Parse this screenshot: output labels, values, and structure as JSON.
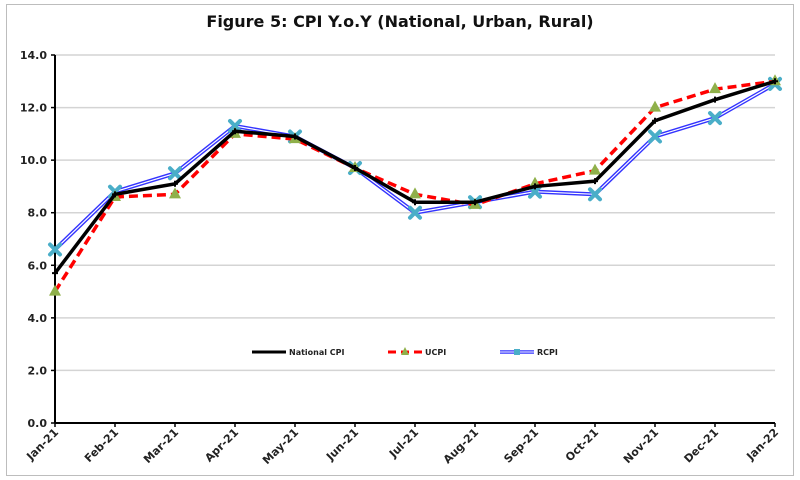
{
  "chart_data": {
    "type": "line",
    "title": "Figure 5: CPI Y.o.Y (National, Urban, Rural)",
    "xlabel": "",
    "ylabel": "",
    "categories": [
      "Jan-21",
      "Feb-21",
      "Mar-21",
      "Apr-21",
      "May-21",
      "Jun-21",
      "Jul-21",
      "Aug-21",
      "Sep-21",
      "Oct-21",
      "Nov-21",
      "Dec-21",
      "Jan-22"
    ],
    "ylim": [
      0,
      14
    ],
    "yticks": [
      "0.0",
      "2.0",
      "4.0",
      "6.0",
      "8.0",
      "10.0",
      "12.0",
      "14.0"
    ],
    "grid": true,
    "legend": "inside-bottom-center",
    "series": [
      {
        "name": "National CPI",
        "color": "#000000",
        "style": "solid",
        "marker": "plus",
        "values": [
          5.7,
          8.7,
          9.1,
          11.1,
          10.9,
          9.7,
          8.4,
          8.4,
          9.0,
          9.2,
          11.5,
          12.3,
          13.0
        ]
      },
      {
        "name": "UCPI",
        "color": "#ff0000",
        "style": "dashed",
        "marker": "triangle",
        "marker_color": "#8fb04a",
        "values": [
          5.0,
          8.6,
          8.7,
          11.0,
          10.8,
          9.7,
          8.7,
          8.3,
          9.1,
          9.6,
          12.0,
          12.7,
          13.0
        ]
      },
      {
        "name": "RCPI",
        "color": "#3333ff",
        "style": "double",
        "marker": "x",
        "marker_color": "#4aaec8",
        "values": [
          6.6,
          8.8,
          9.5,
          11.3,
          10.9,
          9.7,
          8.0,
          8.4,
          8.8,
          8.7,
          10.9,
          11.6,
          12.9
        ]
      }
    ]
  }
}
